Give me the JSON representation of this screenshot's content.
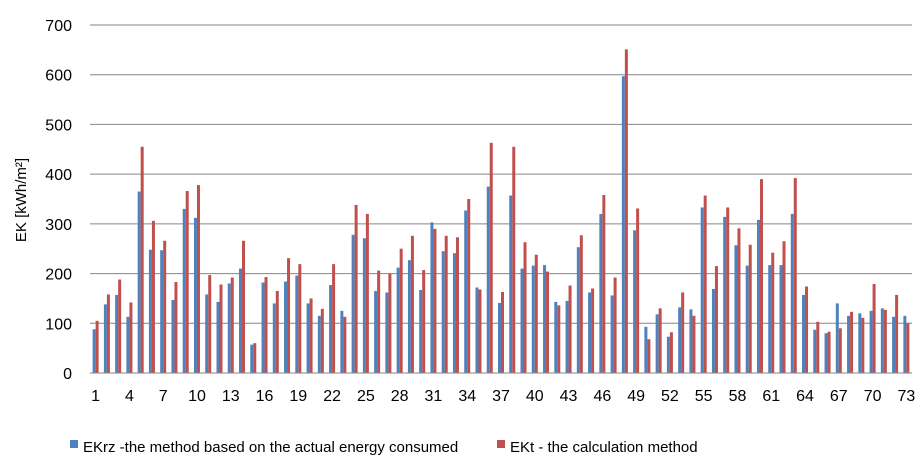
{
  "chart_data": {
    "type": "bar",
    "ylabel": "EK [kWh/m²]",
    "xlabel": "",
    "title": "",
    "ylim": [
      0,
      700
    ],
    "yticks": [
      0,
      100,
      200,
      300,
      400,
      500,
      600,
      700
    ],
    "grid": "horizontal",
    "legend_position": "bottom",
    "categories": [
      1,
      2,
      3,
      4,
      5,
      6,
      7,
      8,
      9,
      10,
      11,
      12,
      13,
      14,
      15,
      16,
      17,
      18,
      19,
      20,
      21,
      22,
      23,
      24,
      25,
      26,
      27,
      28,
      29,
      30,
      31,
      32,
      33,
      34,
      35,
      36,
      37,
      38,
      39,
      40,
      41,
      42,
      43,
      44,
      45,
      46,
      47,
      48,
      49,
      50,
      51,
      52,
      53,
      54,
      55,
      56,
      57,
      58,
      59,
      60,
      61,
      62,
      63,
      64,
      65,
      66,
      67,
      68,
      69,
      70,
      71,
      72,
      73
    ],
    "xticks_shown": [
      "1",
      "4",
      "7",
      "10",
      "13",
      "16",
      "19",
      "22",
      "25",
      "28",
      "31",
      "34",
      "37",
      "40",
      "43",
      "46",
      "49",
      "52",
      "55",
      "58",
      "61",
      "64",
      "67",
      "70",
      "73"
    ],
    "series": [
      {
        "name": "EKrz -the method based on the actual energy consumed",
        "color": "#4f81bd",
        "values": [
          88,
          138,
          157,
          113,
          365,
          248,
          247,
          147,
          330,
          312,
          158,
          143,
          180,
          210,
          57,
          182,
          140,
          184,
          196,
          140,
          115,
          177,
          125,
          278,
          271,
          165,
          162,
          212,
          227,
          167,
          303,
          245,
          241,
          327,
          172,
          375,
          141,
          357,
          210,
          216,
          217,
          143,
          145,
          253,
          162,
          320,
          156,
          597,
          287,
          93,
          118,
          73,
          132,
          128,
          333,
          169,
          314,
          257,
          216,
          308,
          217,
          217,
          320,
          157,
          87,
          80,
          140,
          115,
          120,
          125,
          130,
          113,
          115
        ]
      },
      {
        "name": "EKt - the calculation method",
        "color": "#c0504d",
        "values": [
          105,
          158,
          188,
          142,
          455,
          306,
          266,
          183,
          366,
          378,
          197,
          178,
          192,
          266,
          60,
          193,
          165,
          231,
          219,
          150,
          129,
          219,
          113,
          338,
          320,
          206,
          200,
          250,
          276,
          207,
          290,
          276,
          273,
          350,
          168,
          463,
          163,
          455,
          263,
          238,
          204,
          136,
          176,
          277,
          170,
          358,
          192,
          651,
          331,
          68,
          130,
          82,
          162,
          115,
          357,
          215,
          333,
          291,
          258,
          390,
          242,
          265,
          392,
          174,
          103,
          83,
          90,
          123,
          111,
          179,
          127,
          157,
          100
        ]
      }
    ]
  }
}
